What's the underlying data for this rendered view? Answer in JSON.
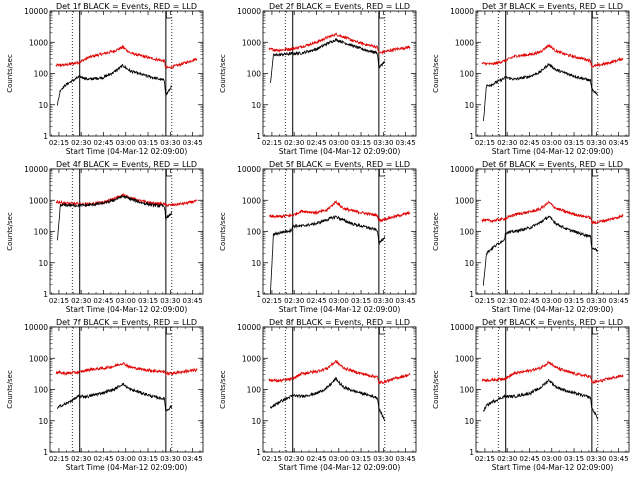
{
  "chart_data": [
    {
      "type": "line",
      "title": "Det 1f BLACK = Events, RED = LLD",
      "xlabel": "Start Time (04-Mar-12 02:09:00)",
      "ylabel": "Counts/sec",
      "yscale": "log",
      "ylim": [
        1,
        10000
      ],
      "xlim": [
        "02:09",
        "03:52"
      ],
      "x_ticks": [
        "02:15",
        "02:30",
        "02:45",
        "03:00",
        "03:15",
        "03:30",
        "03:45"
      ],
      "y_ticks": [
        "1",
        "10",
        "100",
        "1000",
        "10000"
      ],
      "grid": false,
      "vertical_markers": {
        "dotted": [
          "02:24",
          "03:31"
        ],
        "solid": [
          "02:29",
          "03:27"
        ]
      },
      "series": [
        {
          "color": "#e00000",
          "x": [
            "02:13",
            "02:20",
            "02:29",
            "02:35",
            "02:45",
            "02:52",
            "02:58",
            "03:03",
            "03:10",
            "03:18",
            "03:26",
            "03:27",
            "03:31",
            "03:40",
            "03:48"
          ],
          "y": [
            180,
            190,
            230,
            330,
            430,
            520,
            700,
            460,
            370,
            300,
            250,
            150,
            160,
            220,
            300
          ]
        },
        {
          "color": "#000000",
          "x": [
            "02:14",
            "02:16",
            "02:20",
            "02:28",
            "02:29",
            "02:35",
            "02:45",
            "02:52",
            "02:58",
            "03:03",
            "03:10",
            "03:18",
            "03:26",
            "03:27",
            "03:31"
          ],
          "y": [
            10,
            30,
            45,
            75,
            80,
            65,
            75,
            110,
            180,
            120,
            95,
            75,
            60,
            20,
            40
          ]
        }
      ]
    },
    {
      "type": "line",
      "title": "Det 2f BLACK = Events, RED = LLD",
      "xlabel": "Start Time (04-Mar-12 02:09:00)",
      "ylabel": "Counts/sec",
      "yscale": "log",
      "ylim": [
        1,
        10000
      ],
      "xlim": [
        "02:09",
        "03:52"
      ],
      "x_ticks": [
        "02:15",
        "02:30",
        "02:45",
        "03:00",
        "03:15",
        "03:30",
        "03:45"
      ],
      "y_ticks": [
        "1",
        "10",
        "100",
        "1000",
        "10000"
      ],
      "grid": false,
      "vertical_markers": {
        "dotted": [
          "02:24",
          "03:31"
        ],
        "solid": [
          "02:29",
          "03:27"
        ]
      },
      "series": [
        {
          "color": "#e00000",
          "x": [
            "02:13",
            "02:20",
            "02:29",
            "02:35",
            "02:45",
            "02:52",
            "02:58",
            "03:03",
            "03:10",
            "03:18",
            "03:26",
            "03:27",
            "03:31",
            "03:40",
            "03:48"
          ],
          "y": [
            600,
            560,
            620,
            720,
            1000,
            1400,
            1800,
            1500,
            1100,
            850,
            700,
            450,
            500,
            620,
            700
          ]
        },
        {
          "color": "#000000",
          "x": [
            "02:14",
            "02:16",
            "02:20",
            "02:28",
            "02:29",
            "02:35",
            "02:45",
            "02:52",
            "02:58",
            "03:03",
            "03:10",
            "03:18",
            "03:26",
            "03:27",
            "03:31"
          ],
          "y": [
            50,
            380,
            400,
            430,
            430,
            450,
            600,
            900,
            1200,
            1000,
            750,
            560,
            460,
            150,
            250
          ]
        }
      ]
    },
    {
      "type": "line",
      "title": "Det 3f BLACK = Events, RED = LLD",
      "xlabel": "Start Time (04-Mar-12 02:09:00)",
      "ylabel": "Counts/sec",
      "yscale": "log",
      "ylim": [
        1,
        10000
      ],
      "xlim": [
        "02:09",
        "03:52"
      ],
      "x_ticks": [
        "02:15",
        "02:30",
        "02:45",
        "03:00",
        "03:15",
        "03:30",
        "03:45"
      ],
      "y_ticks": [
        "1",
        "10",
        "100",
        "1000",
        "10000"
      ],
      "grid": false,
      "vertical_markers": {
        "dotted": [
          "02:24",
          "03:31"
        ],
        "solid": [
          "02:29",
          "03:27"
        ]
      },
      "series": [
        {
          "color": "#e00000",
          "x": [
            "02:13",
            "02:20",
            "02:29",
            "02:35",
            "02:45",
            "02:52",
            "02:58",
            "03:03",
            "03:10",
            "03:18",
            "03:26",
            "03:27",
            "03:31",
            "03:40",
            "03:48"
          ],
          "y": [
            210,
            200,
            260,
            360,
            400,
            480,
            800,
            520,
            400,
            320,
            260,
            170,
            180,
            230,
            300
          ]
        },
        {
          "color": "#000000",
          "x": [
            "02:14",
            "02:16",
            "02:20",
            "02:28",
            "02:29",
            "02:35",
            "02:45",
            "02:52",
            "02:58",
            "03:03",
            "03:10",
            "03:18",
            "03:26",
            "03:27",
            "03:31"
          ],
          "y": [
            3,
            40,
            45,
            70,
            75,
            65,
            80,
            110,
            200,
            130,
            100,
            75,
            60,
            30,
            20
          ]
        }
      ]
    },
    {
      "type": "line",
      "title": "Det 4f BLACK = Events, RED = LLD",
      "xlabel": "Start Time (04-Mar-12 02:09:00)",
      "ylabel": "Counts/sec",
      "yscale": "log",
      "ylim": [
        1,
        10000
      ],
      "xlim": [
        "02:09",
        "03:52"
      ],
      "x_ticks": [
        "02:15",
        "02:30",
        "02:45",
        "03:00",
        "03:15",
        "03:30",
        "03:45"
      ],
      "y_ticks": [
        "1",
        "10",
        "100",
        "1000",
        "10000"
      ],
      "grid": false,
      "vertical_markers": {
        "dotted": [
          "02:24",
          "03:31"
        ],
        "solid": [
          "02:29",
          "03:27"
        ]
      },
      "series": [
        {
          "color": "#e00000",
          "x": [
            "02:13",
            "02:20",
            "02:29",
            "02:35",
            "02:45",
            "02:52",
            "02:58",
            "03:03",
            "03:10",
            "03:18",
            "03:26",
            "03:27",
            "03:31",
            "03:40",
            "03:48"
          ],
          "y": [
            900,
            800,
            750,
            750,
            850,
            1100,
            1500,
            1200,
            950,
            800,
            750,
            700,
            700,
            800,
            950
          ]
        },
        {
          "color": "#000000",
          "x": [
            "02:14",
            "02:16",
            "02:20",
            "02:28",
            "02:29",
            "02:35",
            "02:45",
            "02:52",
            "02:58",
            "03:03",
            "03:10",
            "03:18",
            "03:26",
            "03:27",
            "03:31"
          ],
          "y": [
            50,
            700,
            700,
            680,
            680,
            700,
            800,
            1000,
            1350,
            1100,
            850,
            700,
            650,
            250,
            400
          ]
        }
      ]
    },
    {
      "type": "line",
      "title": "Det 5f BLACK = Events, RED = LLD",
      "xlabel": "Start Time (04-Mar-12 02:09:00)",
      "ylabel": "Counts/sec",
      "yscale": "log",
      "ylim": [
        1,
        10000
      ],
      "xlim": [
        "02:09",
        "03:52"
      ],
      "x_ticks": [
        "02:15",
        "02:30",
        "02:45",
        "03:00",
        "03:15",
        "03:30",
        "03:45"
      ],
      "y_ticks": [
        "1",
        "10",
        "100",
        "1000",
        "10000"
      ],
      "grid": false,
      "vertical_markers": {
        "dotted": [
          "02:24",
          "03:31"
        ],
        "solid": [
          "02:29",
          "03:27"
        ]
      },
      "series": [
        {
          "color": "#e00000",
          "x": [
            "02:13",
            "02:20",
            "02:29",
            "02:35",
            "02:45",
            "02:52",
            "02:58",
            "03:03",
            "03:10",
            "03:18",
            "03:26",
            "03:27",
            "03:31",
            "03:40",
            "03:48"
          ],
          "y": [
            300,
            300,
            330,
            450,
            400,
            480,
            900,
            550,
            450,
            380,
            330,
            220,
            250,
            320,
            400
          ]
        },
        {
          "color": "#000000",
          "x": [
            "02:14",
            "02:16",
            "02:20",
            "02:28",
            "02:29",
            "02:35",
            "02:45",
            "02:52",
            "02:58",
            "03:03",
            "03:10",
            "03:18",
            "03:26",
            "03:27",
            "03:31"
          ],
          "y": [
            1,
            80,
            90,
            110,
            150,
            150,
            180,
            240,
            300,
            230,
            170,
            140,
            110,
            40,
            70
          ]
        }
      ]
    },
    {
      "type": "line",
      "title": "Det 6f BLACK = Events, RED = LLD",
      "xlabel": "Start Time (04-Mar-12 02:09:00)",
      "ylabel": "Counts/sec",
      "yscale": "log",
      "ylim": [
        1,
        10000
      ],
      "xlim": [
        "02:09",
        "03:52"
      ],
      "x_ticks": [
        "02:15",
        "02:30",
        "02:45",
        "03:00",
        "03:15",
        "03:30",
        "03:45"
      ],
      "y_ticks": [
        "1",
        "10",
        "100",
        "1000",
        "10000"
      ],
      "grid": false,
      "vertical_markers": {
        "dotted": [
          "02:24",
          "03:31"
        ],
        "solid": [
          "02:29",
          "03:27"
        ]
      },
      "series": [
        {
          "color": "#e00000",
          "x": [
            "02:13",
            "02:20",
            "02:29",
            "02:35",
            "02:45",
            "02:52",
            "02:58",
            "03:03",
            "03:10",
            "03:18",
            "03:26",
            "03:27",
            "03:31",
            "03:40",
            "03:48"
          ],
          "y": [
            230,
            220,
            260,
            350,
            420,
            520,
            850,
            550,
            420,
            330,
            280,
            190,
            200,
            250,
            320
          ]
        },
        {
          "color": "#000000",
          "x": [
            "02:14",
            "02:16",
            "02:20",
            "02:28",
            "02:29",
            "02:35",
            "02:45",
            "02:52",
            "02:58",
            "03:03",
            "03:10",
            "03:18",
            "03:26",
            "03:27",
            "03:31"
          ],
          "y": [
            2,
            20,
            30,
            55,
            90,
            100,
            130,
            190,
            300,
            180,
            120,
            90,
            70,
            30,
            25
          ]
        }
      ]
    },
    {
      "type": "line",
      "title": "Det 7f BLACK = Events, RED = LLD",
      "xlabel": "Start Time (04-Mar-12 02:09:00)",
      "ylabel": "Counts/sec",
      "yscale": "log",
      "ylim": [
        1,
        10000
      ],
      "xlim": [
        "02:09",
        "03:52"
      ],
      "x_ticks": [
        "02:15",
        "02:30",
        "02:45",
        "03:00",
        "03:15",
        "03:30",
        "03:45"
      ],
      "y_ticks": [
        "1",
        "10",
        "100",
        "1000",
        "10000"
      ],
      "grid": false,
      "vertical_markers": {
        "dotted": [
          "02:24",
          "03:31"
        ],
        "solid": [
          "02:29",
          "03:27"
        ]
      },
      "series": [
        {
          "color": "#e00000",
          "x": [
            "02:13",
            "02:20",
            "02:29",
            "02:35",
            "02:45",
            "02:52",
            "02:58",
            "03:03",
            "03:10",
            "03:18",
            "03:26",
            "03:27",
            "03:31",
            "03:40",
            "03:48"
          ],
          "y": [
            350,
            330,
            360,
            430,
            480,
            550,
            700,
            520,
            450,
            400,
            370,
            330,
            330,
            380,
            420
          ]
        },
        {
          "color": "#000000",
          "x": [
            "02:14",
            "02:16",
            "02:20",
            "02:28",
            "02:29",
            "02:35",
            "02:45",
            "02:52",
            "02:58",
            "03:03",
            "03:10",
            "03:18",
            "03:26",
            "03:27",
            "03:31"
          ],
          "y": [
            25,
            30,
            35,
            60,
            60,
            60,
            80,
            100,
            150,
            100,
            80,
            60,
            50,
            20,
            30
          ]
        }
      ]
    },
    {
      "type": "line",
      "title": "Det 8f BLACK = Events, RED = LLD",
      "xlabel": "Start Time (04-Mar-12 02:09:00)",
      "ylabel": "Counts/sec",
      "yscale": "log",
      "ylim": [
        1,
        10000
      ],
      "xlim": [
        "02:09",
        "03:52"
      ],
      "x_ticks": [
        "02:15",
        "02:30",
        "02:45",
        "03:00",
        "03:15",
        "03:30",
        "03:45"
      ],
      "y_ticks": [
        "1",
        "10",
        "100",
        "1000",
        "10000"
      ],
      "grid": false,
      "vertical_markers": {
        "dotted": [
          "02:24",
          "03:31"
        ],
        "solid": [
          "02:29",
          "03:27"
        ]
      },
      "series": [
        {
          "color": "#e00000",
          "x": [
            "02:13",
            "02:20",
            "02:29",
            "02:35",
            "02:45",
            "02:52",
            "02:58",
            "03:03",
            "03:10",
            "03:18",
            "03:26",
            "03:27",
            "03:31",
            "03:40",
            "03:48"
          ],
          "y": [
            200,
            190,
            220,
            320,
            380,
            470,
            800,
            500,
            380,
            300,
            250,
            160,
            180,
            240,
            300
          ]
        },
        {
          "color": "#000000",
          "x": [
            "02:14",
            "02:16",
            "02:20",
            "02:28",
            "02:29",
            "02:35",
            "02:45",
            "02:52",
            "02:58",
            "03:03",
            "03:10",
            "03:18",
            "03:26",
            "03:27",
            "03:31"
          ],
          "y": [
            25,
            30,
            40,
            60,
            65,
            60,
            75,
            110,
            220,
            120,
            90,
            70,
            55,
            25,
            10
          ]
        }
      ]
    },
    {
      "type": "line",
      "title": "Det 9f BLACK = Events, RED = LLD",
      "xlabel": "Start Time (04-Mar-12 02:09:00)",
      "ylabel": "Counts/sec",
      "yscale": "log",
      "ylim": [
        1,
        10000
      ],
      "xlim": [
        "02:09",
        "03:52"
      ],
      "x_ticks": [
        "02:15",
        "02:30",
        "02:45",
        "03:00",
        "03:15",
        "03:30",
        "03:45"
      ],
      "y_ticks": [
        "1",
        "10",
        "100",
        "1000",
        "10000"
      ],
      "grid": false,
      "vertical_markers": {
        "dotted": [
          "02:24",
          "03:31"
        ],
        "solid": [
          "02:29",
          "03:27"
        ]
      },
      "series": [
        {
          "color": "#e00000",
          "x": [
            "02:13",
            "02:20",
            "02:29",
            "02:35",
            "02:45",
            "02:52",
            "02:58",
            "03:03",
            "03:10",
            "03:18",
            "03:26",
            "03:27",
            "03:31",
            "03:40",
            "03:48"
          ],
          "y": [
            200,
            200,
            230,
            330,
            400,
            480,
            750,
            500,
            380,
            300,
            260,
            170,
            180,
            230,
            280
          ]
        },
        {
          "color": "#000000",
          "x": [
            "02:14",
            "02:16",
            "02:20",
            "02:28",
            "02:29",
            "02:35",
            "02:45",
            "02:52",
            "02:58",
            "03:03",
            "03:10",
            "03:18",
            "03:26",
            "03:27",
            "03:31"
          ],
          "y": [
            20,
            30,
            40,
            60,
            60,
            60,
            75,
            110,
            200,
            120,
            90,
            70,
            55,
            25,
            12
          ]
        }
      ]
    }
  ]
}
